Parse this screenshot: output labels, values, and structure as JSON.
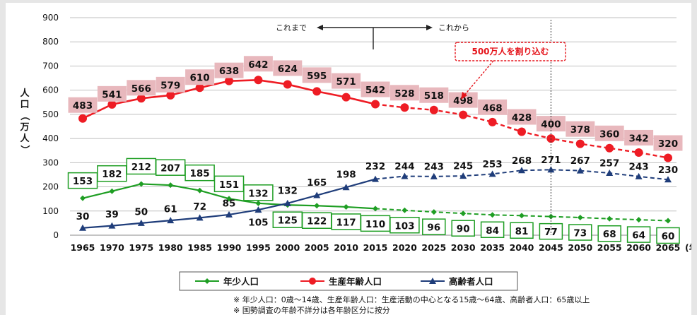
{
  "chart_data": {
    "type": "line",
    "ylabel": "人口（万人）",
    "xunit": "(年)",
    "ylim": [
      0,
      900
    ],
    "yticks": [
      0,
      100,
      200,
      300,
      400,
      500,
      600,
      700,
      800,
      900
    ],
    "categories": [
      "1965",
      "1970",
      "1975",
      "1980",
      "1985",
      "1990",
      "1995",
      "2000",
      "2005",
      "2010",
      "2015",
      "2020",
      "2025",
      "2030",
      "2035",
      "2040",
      "2045",
      "2050",
      "2055",
      "2060",
      "2065"
    ],
    "projection_start": "2015",
    "divider_at": "2045",
    "series": [
      {
        "name": "年少人口",
        "color": "#1e9e23",
        "marker": "diamond",
        "values": [
          153,
          182,
          212,
          207,
          185,
          151,
          132,
          125,
          122,
          117,
          110,
          103,
          96,
          90,
          84,
          81,
          77,
          73,
          68,
          64,
          60
        ]
      },
      {
        "name": "生産年齢人口",
        "color": "#ee1c24",
        "marker": "circle",
        "values": [
          483,
          541,
          566,
          579,
          610,
          638,
          642,
          624,
          595,
          571,
          542,
          528,
          518,
          498,
          468,
          428,
          400,
          378,
          360,
          342,
          320
        ]
      },
      {
        "name": "高齢者人口",
        "color": "#1f3d7a",
        "marker": "triangle",
        "values": [
          30,
          39,
          50,
          61,
          72,
          85,
          105,
          132,
          165,
          198,
          232,
          244,
          243,
          245,
          253,
          268,
          271,
          267,
          257,
          243,
          230
        ]
      }
    ],
    "annotations": {
      "past_label": "これまで",
      "future_label": "これから",
      "callout": "500万人を割り込む"
    }
  },
  "notes": [
    "※ 年少人口：0歳～14歳、生産年齢人口：生産活動の中心となる15歳～64歳、高齢者人口：65歳以上",
    "※ 国勢調査の年齢不詳分は各年齢区分に按分"
  ]
}
